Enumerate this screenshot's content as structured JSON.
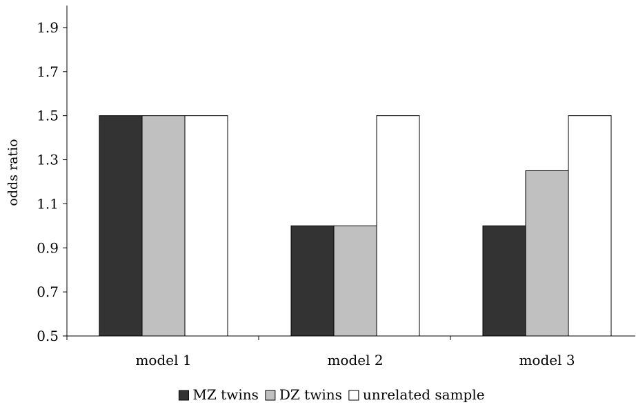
{
  "chart_data": {
    "type": "bar",
    "title": "",
    "xlabel": "",
    "ylabel": "odds ratio",
    "ylim": [
      0.5,
      2.0
    ],
    "yticks": [
      0.5,
      0.7,
      0.9,
      1.1,
      1.3,
      1.5,
      1.7,
      1.9
    ],
    "categories": [
      "model 1",
      "model 2",
      "model 3"
    ],
    "series": [
      {
        "name": "MZ twins",
        "values": [
          1.5,
          1.0,
          1.0
        ],
        "color": "#333333"
      },
      {
        "name": "DZ twins",
        "values": [
          1.5,
          1.0,
          1.25
        ],
        "color": "#c0c0c0"
      },
      {
        "name": "unrelated sample",
        "values": [
          1.5,
          1.5,
          1.5
        ],
        "color": "#ffffff"
      }
    ],
    "grid": false,
    "legend_position": "bottom"
  }
}
